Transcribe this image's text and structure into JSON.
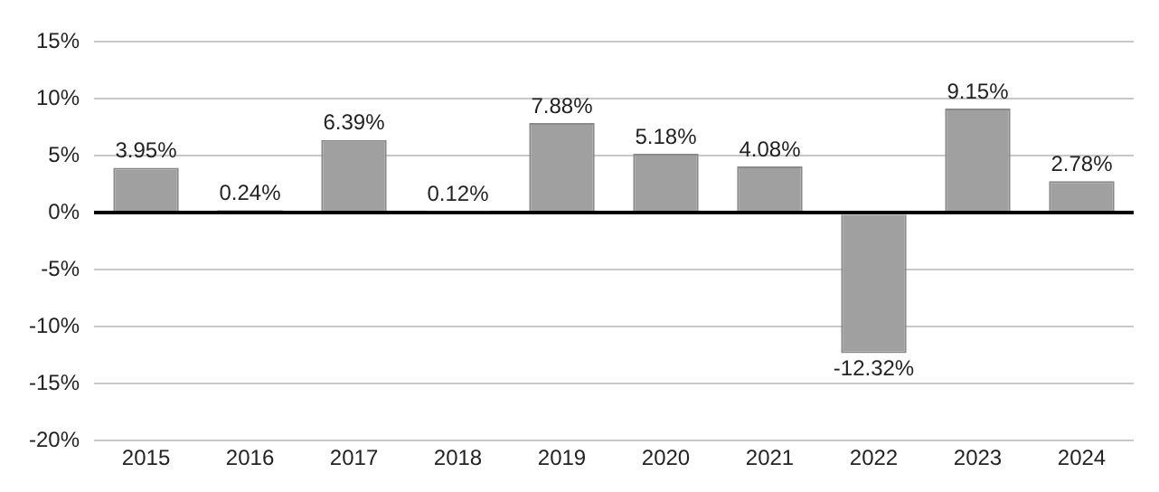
{
  "chart_data": {
    "type": "bar",
    "categories": [
      "2015",
      "2016",
      "2017",
      "2018",
      "2019",
      "2020",
      "2021",
      "2022",
      "2023",
      "2024"
    ],
    "values": [
      3.95,
      0.24,
      6.39,
      0.12,
      7.88,
      5.18,
      4.08,
      -12.32,
      9.15,
      2.78
    ],
    "value_labels": [
      "3.95%",
      "0.24%",
      "6.39%",
      "0.12%",
      "7.88%",
      "5.18%",
      "4.08%",
      "-12.32%",
      "9.15%",
      "2.78%"
    ],
    "color": "#a0a0a0",
    "ylim": [
      -20,
      15
    ],
    "yticks": [
      {
        "value": -20,
        "label": "-20%"
      },
      {
        "value": -15,
        "label": "-15%"
      },
      {
        "value": -10,
        "label": "-10%"
      },
      {
        "value": -5,
        "label": "-5%"
      },
      {
        "value": 0,
        "label": "0%"
      },
      {
        "value": 5,
        "label": "5%"
      },
      {
        "value": 10,
        "label": "10%"
      },
      {
        "value": 15,
        "label": "15%"
      }
    ],
    "grid": "y",
    "legend": false
  }
}
